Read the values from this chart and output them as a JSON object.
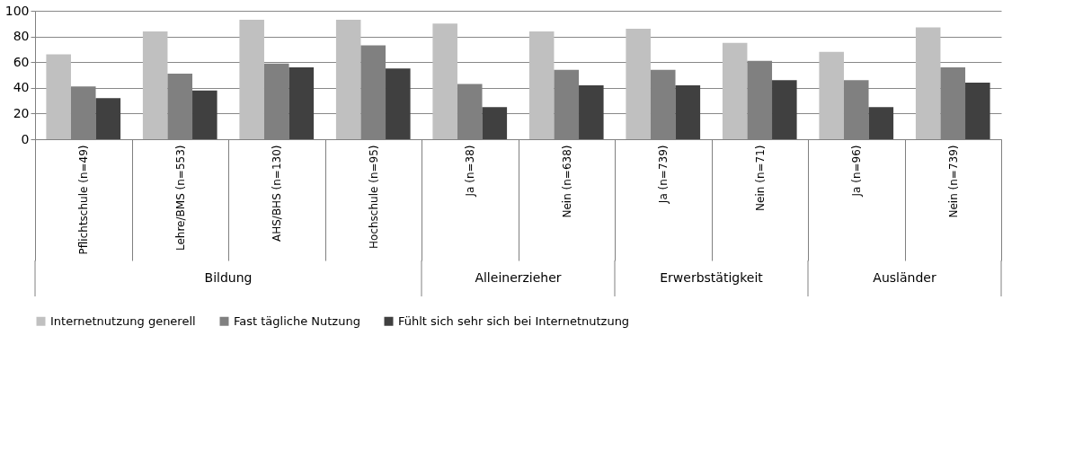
{
  "chart_data": {
    "type": "bar",
    "categories": [
      "Pflichtschule (n=49)",
      "Lehre/BMS (n=553)",
      "AHS/BHS (n=130)",
      "Hochschule (n=95)",
      "Ja (n=38)",
      "Nein (n=638)",
      "Ja (n=739)",
      "Nein (n=71)",
      "Ja (n=96)",
      "Nein (n=739)"
    ],
    "series": [
      {
        "name": "Internetnutzung generell",
        "color": "#c0c0c0",
        "values": [
          66,
          84,
          93,
          93,
          90,
          84,
          86,
          75,
          68,
          87
        ]
      },
      {
        "name": "Fast tägliche Nutzung",
        "color": "#808080",
        "values": [
          41,
          51,
          59,
          73,
          43,
          54,
          54,
          61,
          46,
          56
        ]
      },
      {
        "name": "Fühlt sich sehr sich bei Internetnutzung",
        "color": "#404040",
        "values": [
          32,
          38,
          56,
          55,
          25,
          42,
          42,
          46,
          25,
          44
        ]
      }
    ],
    "annotations": [
      "Bildung",
      "Alleinerzieher",
      "Erwerbstätigkeit",
      "Ausländer"
    ],
    "ylim": [
      0,
      100
    ],
    "yticks": [
      0,
      20,
      40,
      60,
      80,
      100
    ],
    "grid": "y",
    "legend": "bottom"
  }
}
